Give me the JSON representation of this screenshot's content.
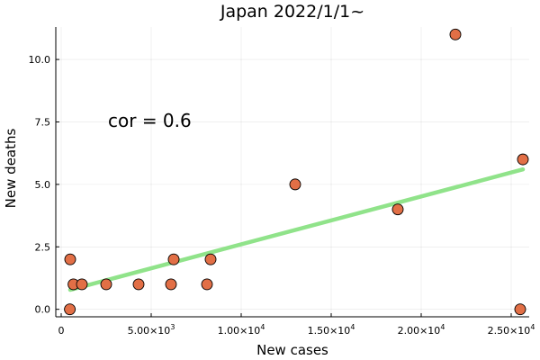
{
  "chart_data": {
    "type": "scatter",
    "title": "Japan 2022/1/1~",
    "xlabel": "New cases",
    "ylabel": "New deaths",
    "xlim": [
      -300,
      26000
    ],
    "ylim": [
      -0.3,
      11.3
    ],
    "grid": true,
    "x_ticks": [
      {
        "value": 0,
        "label": "0"
      },
      {
        "value": 5000,
        "label": "5.00×10",
        "exp": "3"
      },
      {
        "value": 10000,
        "label": "1.00×10",
        "exp": "4"
      },
      {
        "value": 15000,
        "label": "1.50×10",
        "exp": "4"
      },
      {
        "value": 20000,
        "label": "2.00×10",
        "exp": "4"
      },
      {
        "value": 25000,
        "label": "2.50×10",
        "exp": "4"
      }
    ],
    "y_ticks": [
      {
        "value": 0,
        "label": "0.0"
      },
      {
        "value": 2.5,
        "label": "2.5"
      },
      {
        "value": 5,
        "label": "5.0"
      },
      {
        "value": 7.5,
        "label": "7.5"
      },
      {
        "value": 10,
        "label": "10.0"
      }
    ],
    "points": [
      {
        "x": 480,
        "y": 0
      },
      {
        "x": 500,
        "y": 2
      },
      {
        "x": 680,
        "y": 1
      },
      {
        "x": 1150,
        "y": 1
      },
      {
        "x": 2500,
        "y": 1
      },
      {
        "x": 4300,
        "y": 1
      },
      {
        "x": 6100,
        "y": 1
      },
      {
        "x": 6250,
        "y": 2
      },
      {
        "x": 8100,
        "y": 1
      },
      {
        "x": 8300,
        "y": 2
      },
      {
        "x": 13000,
        "y": 5
      },
      {
        "x": 18700,
        "y": 4
      },
      {
        "x": 21900,
        "y": 11
      },
      {
        "x": 25500,
        "y": 0
      },
      {
        "x": 25650,
        "y": 6
      }
    ],
    "fit_line": {
      "x": [
        500,
        25650
      ],
      "y": [
        0.78,
        5.6
      ]
    },
    "annotation": {
      "text": "cor = 0.6",
      "x": 2600,
      "y": 7.3
    },
    "point_color": "#e26f46",
    "line_color": "#90e38a"
  }
}
